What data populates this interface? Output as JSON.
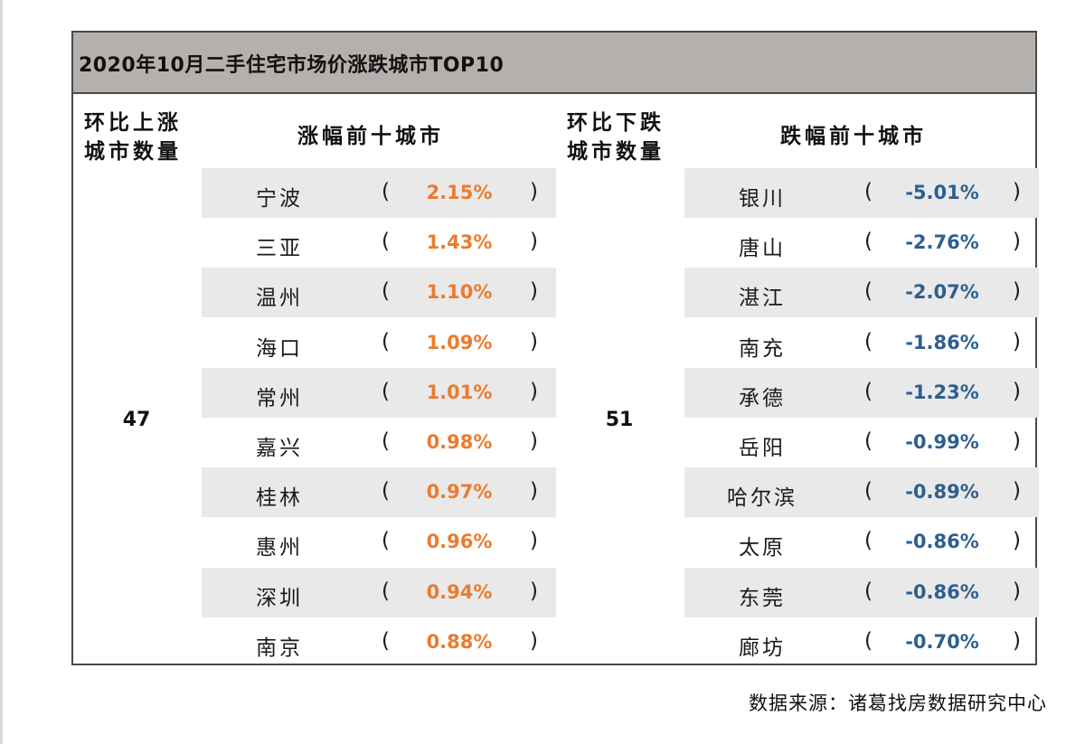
{
  "chart_data": {
    "type": "table",
    "title": "2020年10月二手住宅市场价涨跌城市TOP10",
    "rising": {
      "count_header": [
        "环比上涨",
        "城市数量"
      ],
      "list_header": "涨幅前十城市",
      "count": "47",
      "color": "#ec7b2e",
      "rows": [
        {
          "city": "宁波",
          "value": "2.15%"
        },
        {
          "city": "三亚",
          "value": "1.43%"
        },
        {
          "city": "温州",
          "value": "1.10%"
        },
        {
          "city": "海口",
          "value": "1.09%"
        },
        {
          "city": "常州",
          "value": "1.01%"
        },
        {
          "city": "嘉兴",
          "value": "0.98%"
        },
        {
          "city": "桂林",
          "value": "0.97%"
        },
        {
          "city": "惠州",
          "value": "0.96%"
        },
        {
          "city": "深圳",
          "value": "0.94%"
        },
        {
          "city": "南京",
          "value": "0.88%"
        }
      ]
    },
    "falling": {
      "count_header": [
        "环比下跌",
        "城市数量"
      ],
      "list_header": "跌幅前十城市",
      "count": "51",
      "color": "#2d5f8f",
      "rows": [
        {
          "city": "银川",
          "value": "-5.01%"
        },
        {
          "city": "唐山",
          "value": "-2.76%"
        },
        {
          "city": "湛江",
          "value": "-2.07%"
        },
        {
          "city": "南充",
          "value": "-1.86%"
        },
        {
          "city": "承德",
          "value": "-1.23%"
        },
        {
          "city": "岳阳",
          "value": "-0.99%"
        },
        {
          "city": "哈尔滨",
          "value": "-0.89%"
        },
        {
          "city": "太原",
          "value": "-0.86%"
        },
        {
          "city": "东莞",
          "value": "-0.86%"
        },
        {
          "city": "廊坊",
          "value": "-0.70%"
        }
      ]
    },
    "paren_open": "(",
    "paren_close": ")"
  },
  "source": "数据来源：诸葛找房数据研究中心"
}
